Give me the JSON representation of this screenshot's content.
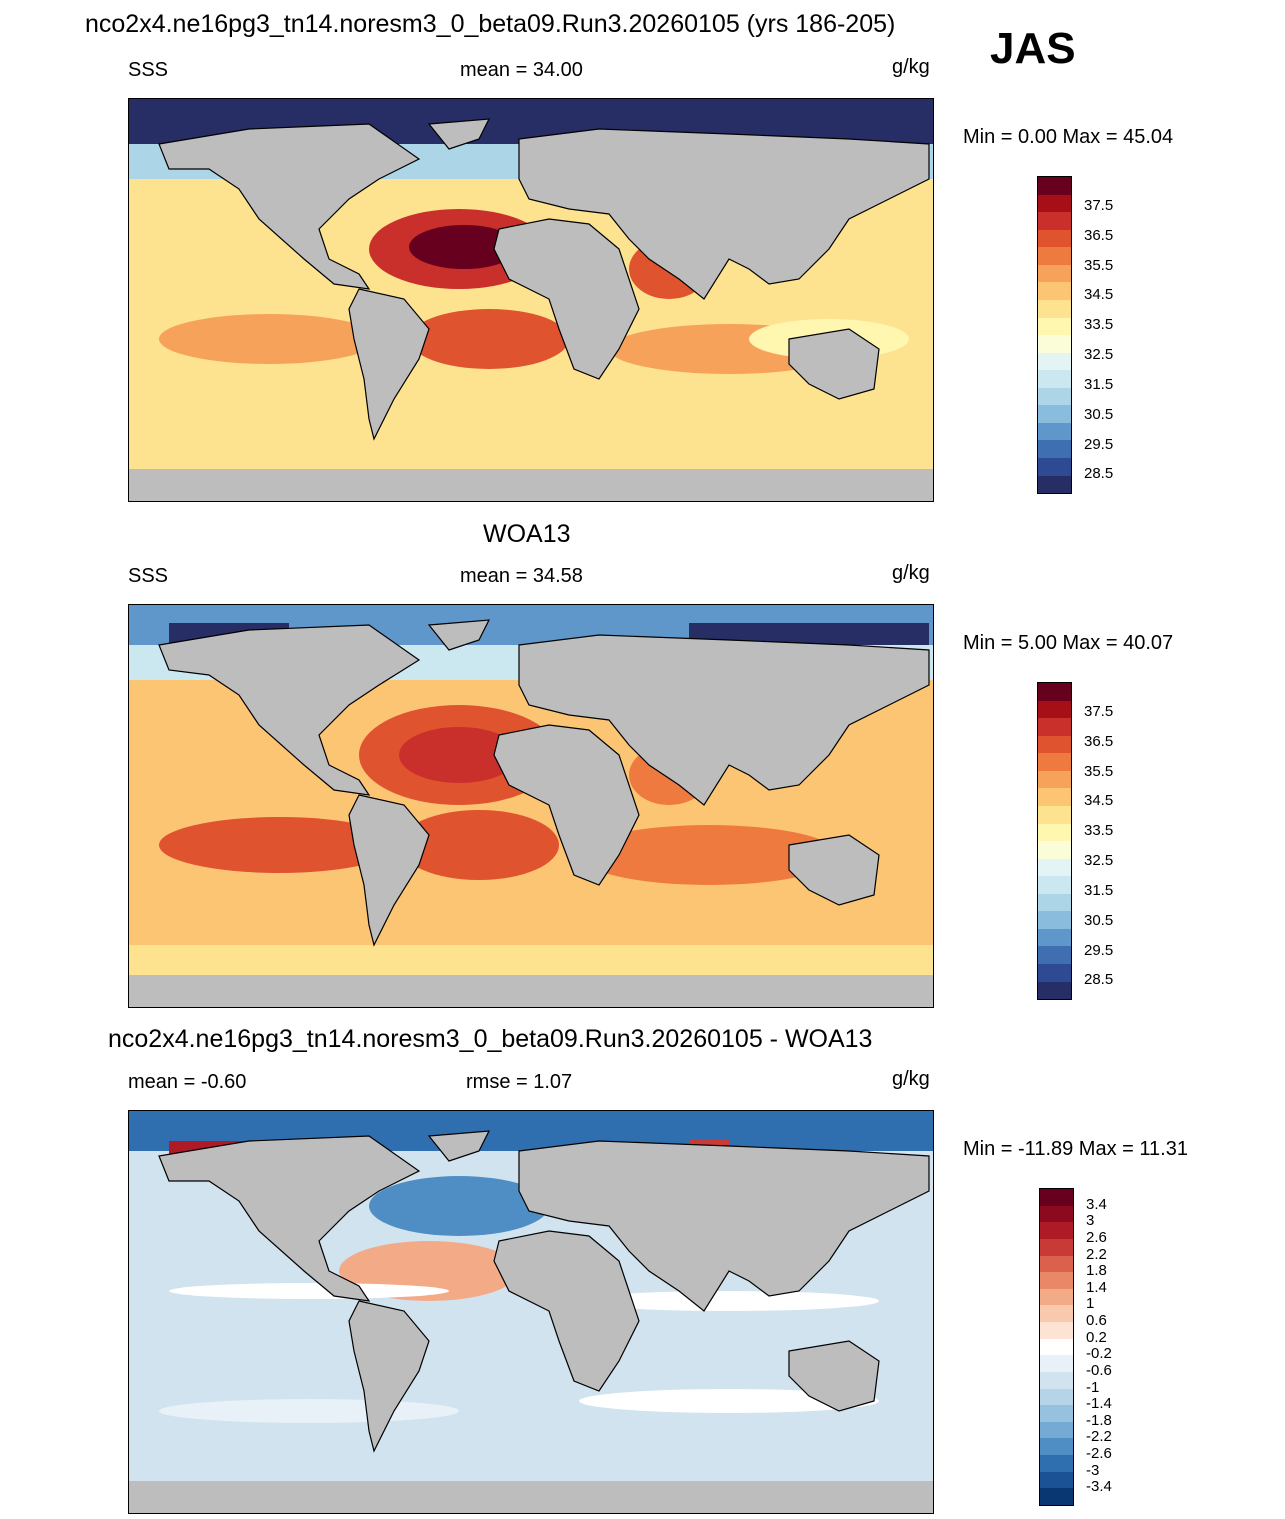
{
  "title": "nco2x4.ne16pg3_tn14.noresm3_0_beta09.Run3.20260105 (yrs 186-205)",
  "season": "JAS",
  "panels": [
    {
      "title": "",
      "left_label": "SSS",
      "center_label": "mean =  34.00",
      "units": "g/kg",
      "minmax": "Min =   0.00 Max =  45.04"
    },
    {
      "title": "WOA13",
      "left_label": "SSS",
      "center_label": "mean =  34.58",
      "units": "g/kg",
      "minmax": "Min =   5.00 Max =  40.07"
    },
    {
      "title": "nco2x4.ne16pg3_tn14.noresm3_0_beta09.Run3.20260105 - WOA13",
      "left_label": "mean =  -0.60",
      "center_label": "rmse =   1.07",
      "units": "g/kg",
      "minmax": "Min = -11.89 Max =  11.31"
    }
  ],
  "colorbar_sss": {
    "labels": [
      "37.5",
      "36.5",
      "35.5",
      "34.5",
      "33.5",
      "32.5",
      "31.5",
      "30.5",
      "29.5",
      "28.5"
    ],
    "colors": [
      "#67001f",
      "#a50f15",
      "#c9302b",
      "#e0532f",
      "#ef7a40",
      "#f7a25a",
      "#fbc574",
      "#fde38f",
      "#fff6b0",
      "#fbfdd9",
      "#e4f4f5",
      "#cbe8f1",
      "#acd6e8",
      "#89bcdd",
      "#5f97ca",
      "#3f6fb1",
      "#2e4a92",
      "#272d65"
    ]
  },
  "colorbar_diff": {
    "labels": [
      "3.4",
      "3",
      "2.6",
      "2.2",
      "1.8",
      "1.4",
      "1",
      "0.6",
      "0.2",
      "-0.2",
      "-0.6",
      "-1",
      "-1.4",
      "-1.8",
      "-2.2",
      "-2.6",
      "-3",
      "-3.4"
    ],
    "colors": [
      "#67001f",
      "#8b0a1f",
      "#af1a27",
      "#c83a36",
      "#d9614d",
      "#e88867",
      "#f3aa87",
      "#f9c9ae",
      "#fde3d4",
      "#ffffff",
      "#e8f1f7",
      "#d0e3ef",
      "#b6d4e8",
      "#97c2df",
      "#74aad3",
      "#4f8ec5",
      "#2f6fb0",
      "#1b5296",
      "#083772"
    ]
  },
  "map_colors": {
    "land": "#bdbdbd",
    "coast": "#000000",
    "panel1_ocean": "#fde38f",
    "panel2_ocean": "#f7a25a",
    "panel3_ocean": "#d0e3ef"
  }
}
